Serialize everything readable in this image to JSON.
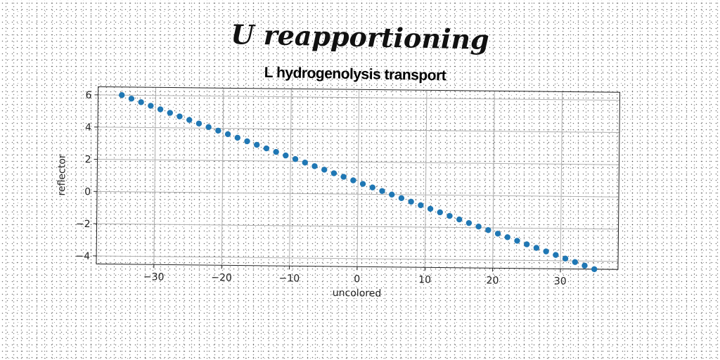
{
  "suptitle": "U reapportioning",
  "chart_data": {
    "type": "scatter",
    "title": "L hydrogenolysis transport",
    "xlabel": "uncolored",
    "ylabel": "reflector",
    "xlim": [
      -38.5,
      38.5
    ],
    "ylim": [
      -4.5,
      6.5
    ],
    "xticks": [
      -30,
      -20,
      -10,
      0,
      10,
      20,
      30
    ],
    "xtick_labels": [
      "−30",
      "−20",
      "−10",
      "0",
      "10",
      "20",
      "30"
    ],
    "yticks": [
      -4,
      -2,
      0,
      2,
      4,
      6
    ],
    "ytick_labels": [
      "−4",
      "−2",
      "0",
      "2",
      "4",
      "6"
    ],
    "grid": true,
    "marker_color": "#1f77b4",
    "series": [
      {
        "line": {
          "x_start": -35,
          "x_end": 35,
          "count": 50,
          "y_start": 6.0,
          "y_end": -4.5
        }
      }
    ]
  }
}
